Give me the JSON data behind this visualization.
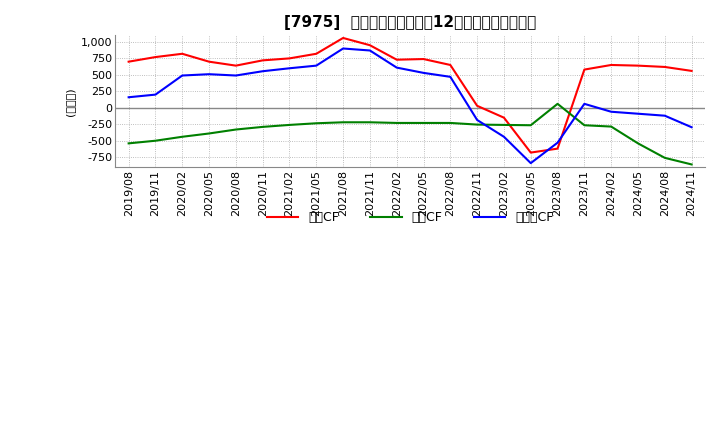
{
  "title": "[7975]  キャッシュフローの12か月移動合計の推移",
  "ylabel": "(百万円)",
  "ylim": [
    -900,
    1100
  ],
  "yticks": [
    -750,
    -500,
    -250,
    0,
    250,
    500,
    750,
    1000
  ],
  "background_color": "#ffffff",
  "plot_bg_color": "#ffffff",
  "grid_color": "#aaaaaa",
  "x_labels": [
    "2019/08",
    "2019/11",
    "2020/02",
    "2020/05",
    "2020/08",
    "2020/11",
    "2021/02",
    "2021/05",
    "2021/08",
    "2021/11",
    "2022/02",
    "2022/05",
    "2022/08",
    "2022/11",
    "2023/02",
    "2023/05",
    "2023/08",
    "2023/11",
    "2024/02",
    "2024/05",
    "2024/08",
    "2024/11"
  ],
  "operating_cf": [
    700,
    770,
    820,
    700,
    640,
    720,
    750,
    820,
    1060,
    950,
    730,
    740,
    650,
    30,
    -150,
    -680,
    -620,
    580,
    650,
    640,
    620,
    560
  ],
  "investing_cf": [
    -540,
    -500,
    -440,
    -390,
    -330,
    -290,
    -260,
    -235,
    -220,
    -220,
    -230,
    -230,
    -230,
    -255,
    -260,
    -265,
    60,
    -265,
    -285,
    -540,
    -760,
    -860
  ],
  "free_cf": [
    160,
    200,
    490,
    510,
    490,
    555,
    600,
    640,
    900,
    870,
    610,
    530,
    470,
    -185,
    -440,
    -840,
    -530,
    60,
    -60,
    -90,
    -120,
    -295
  ],
  "operating_color": "#ff0000",
  "investing_color": "#008000",
  "free_cf_color": "#0000ff",
  "legend_labels": [
    "営業CF",
    "投資CF",
    "フリーCF"
  ]
}
